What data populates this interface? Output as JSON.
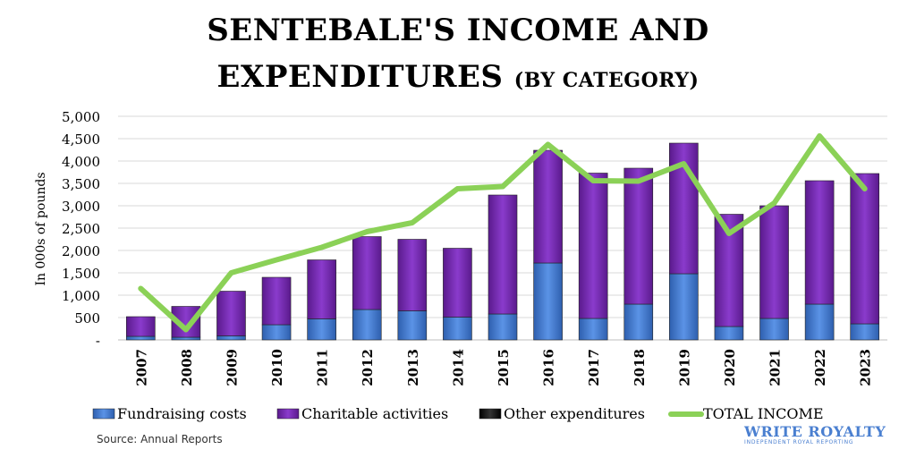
{
  "header": {
    "title_line1": "SENTEBALE'S INCOME AND",
    "title_line2": "EXPENDITURES",
    "title_suffix": "(BY CATEGORY)"
  },
  "footer": {
    "source": "Source: Annual Reports",
    "logo_main": "WRITE ROYALTY",
    "logo_tagline": "INDEPENDENT ROYAL REPORTING"
  },
  "colors": {
    "fundraising": "#4a7fd6",
    "charitable": "#7b2bb8",
    "other": "#111111",
    "income": "#8bd157",
    "grid": "#d9d9d9"
  },
  "chart_data": {
    "type": "bar",
    "stacked": true,
    "title": "SENTEBALE'S INCOME AND EXPENDITURES (BY CATEGORY)",
    "ylabel": "In 000s of pounds",
    "xlabel": "",
    "ylim": [
      0,
      5000
    ],
    "yticks": [
      0,
      500,
      1000,
      1500,
      2000,
      2500,
      3000,
      3500,
      4000,
      4500,
      5000
    ],
    "ytick_labels": [
      "-",
      "500",
      "1,000",
      "1,500",
      "2,000",
      "2,500",
      "3,000",
      "3,500",
      "4,000",
      "4,500",
      "5,000"
    ],
    "grid": true,
    "legend_position": "bottom",
    "categories": [
      "2007",
      "2008",
      "2009",
      "2010",
      "2011",
      "2012",
      "2013",
      "2014",
      "2015",
      "2016",
      "2017",
      "2018",
      "2019",
      "2020",
      "2021",
      "2022",
      "2023"
    ],
    "series": [
      {
        "name": "Fundraising costs",
        "kind": "bar",
        "values": [
          80,
          60,
          90,
          340,
          470,
          680,
          650,
          510,
          580,
          1720,
          480,
          800,
          1480,
          300,
          480,
          800,
          360
        ]
      },
      {
        "name": "Charitable activities",
        "kind": "bar",
        "values": [
          440,
          690,
          1000,
          1060,
          1320,
          1630,
          1600,
          1540,
          2660,
          2520,
          3250,
          3040,
          2920,
          2510,
          2520,
          2760,
          3360
        ]
      },
      {
        "name": "Other expenditures",
        "kind": "bar",
        "values": [
          0,
          0,
          0,
          0,
          0,
          0,
          0,
          0,
          0,
          0,
          0,
          0,
          0,
          0,
          0,
          0,
          0
        ]
      },
      {
        "name": "TOTAL INCOME",
        "kind": "line",
        "values": [
          1150,
          230,
          1500,
          1790,
          2070,
          2420,
          2620,
          3380,
          3430,
          4370,
          3560,
          3550,
          3940,
          2380,
          3060,
          4560,
          3380
        ]
      }
    ]
  }
}
